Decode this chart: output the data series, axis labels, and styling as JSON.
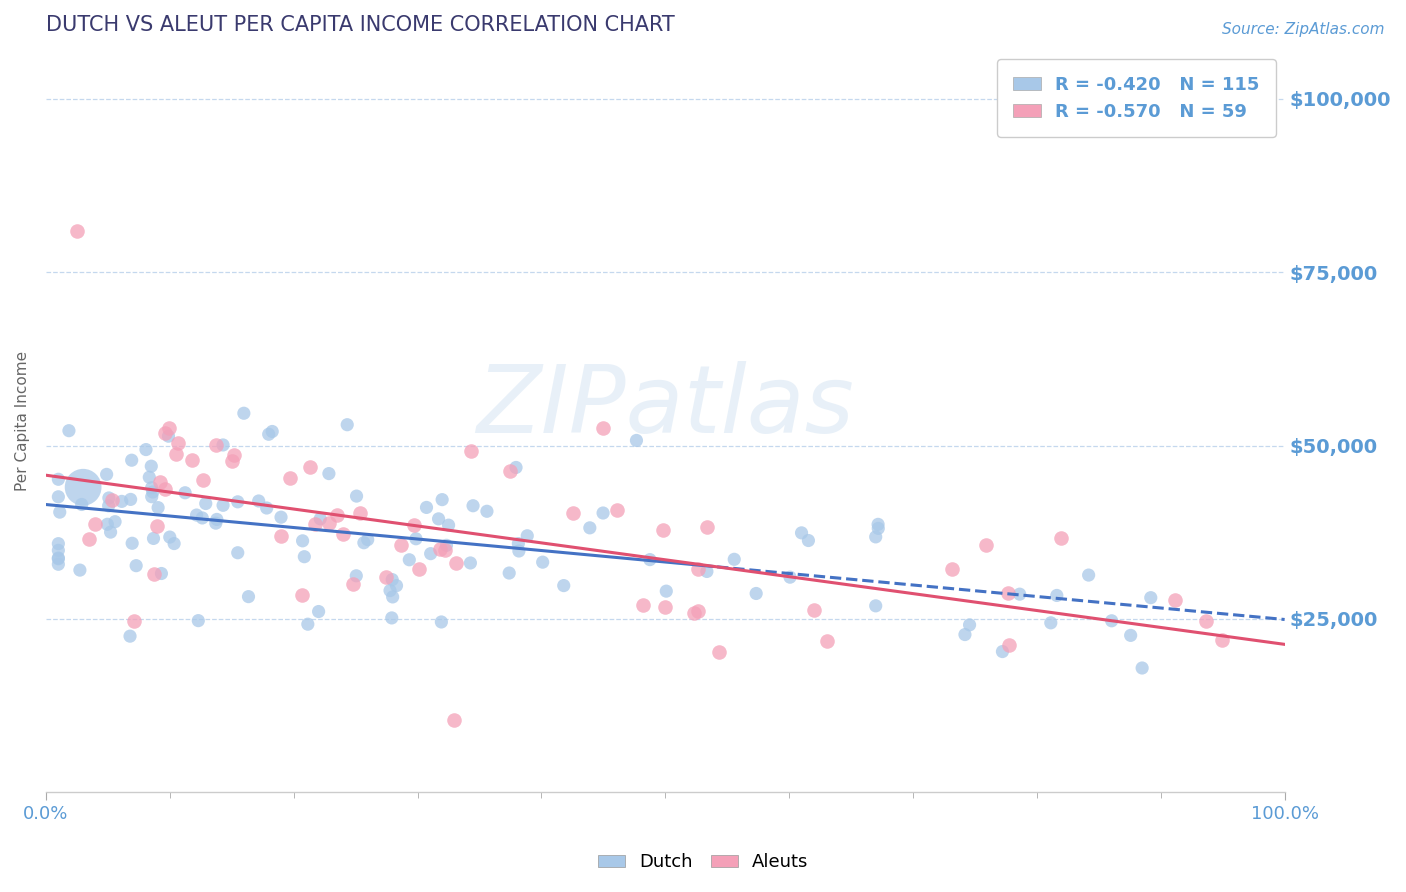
{
  "title": "DUTCH VS ALEUT PER CAPITA INCOME CORRELATION CHART",
  "source_text": "Source: ZipAtlas.com",
  "ylabel": "Per Capita Income",
  "watermark": "ZIPatlas",
  "xlim": [
    0,
    1
  ],
  "ylim": [
    0,
    107000
  ],
  "yticks": [
    25000,
    50000,
    75000,
    100000
  ],
  "ytick_labels": [
    "$25,000",
    "$50,000",
    "$75,000",
    "$100,000"
  ],
  "xtick_labels": [
    "0.0%",
    "100.0%"
  ],
  "blue_R": -0.42,
  "blue_N": 115,
  "pink_R": -0.57,
  "pink_N": 59,
  "title_color": "#3a3a6e",
  "axis_color": "#5b9bd5",
  "grid_color": "#c5d8ee",
  "blue_color": "#a8c8e8",
  "pink_color": "#f4a0b8",
  "blue_line_color": "#4472c4",
  "pink_line_color": "#e05070",
  "legend_label_blue": "Dutch",
  "legend_label_pink": "Aleuts",
  "source_color": "#5b9bd5",
  "blue_intercept": 42000,
  "blue_slope": -15000,
  "pink_intercept": 46000,
  "pink_slope": -24000
}
